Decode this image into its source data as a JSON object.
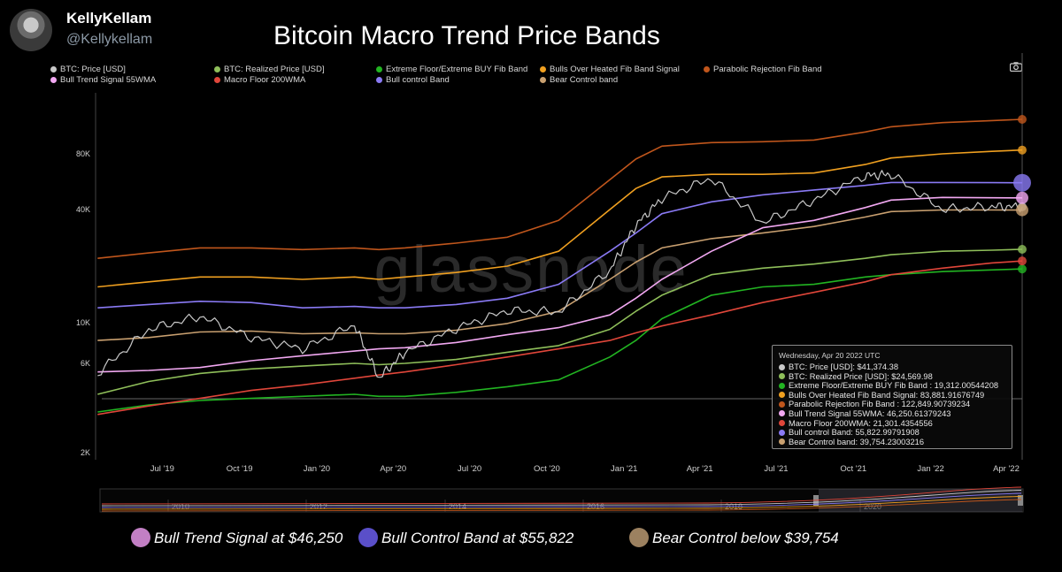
{
  "header": {
    "display_name": "KellyKellam",
    "handle": "@Kellykellam"
  },
  "title": "Bitcoin Macro Trend Price Bands",
  "watermark": "glassnode",
  "legend": [
    {
      "label": "BTC: Price [USD]",
      "color": "#c8c8c8"
    },
    {
      "label": "BTC: Realized Price [USD]",
      "color": "#8fbf5a"
    },
    {
      "label": "Extreme Floor/Extreme BUY Fib Band",
      "color": "#22b422"
    },
    {
      "label": "Bulls Over Heated Fib Band Signal",
      "color": "#f0a020"
    },
    {
      "label": "Parabolic Rejection Fib Band",
      "color": "#c0561c"
    },
    {
      "label": "Bull Trend Signal 55WMA",
      "color": "#f2a8f2"
    },
    {
      "label": "Macro Floor 200WMA",
      "color": "#e0463a"
    },
    {
      "label": "Bull control Band",
      "color": "#8a7af5"
    },
    {
      "label": "Bear Control band",
      "color": "#c9a070"
    }
  ],
  "chart_data": {
    "type": "line",
    "scale": "log",
    "y_ticks": [
      "80K",
      "40K",
      "10K",
      "6K",
      "2K"
    ],
    "x_ticks": [
      "Jul '19",
      "Oct '19",
      "Jan '20",
      "Apr '20",
      "Jul '20",
      "Oct '20",
      "Jan '21",
      "Apr '21",
      "Jul '21",
      "Oct '21",
      "Jan '22",
      "Apr '22"
    ],
    "x_range": [
      "2019-04-20",
      "2022-04-20"
    ],
    "y_range": [
      2000,
      140000
    ],
    "grid": false,
    "legend_position": "top",
    "dates": [
      "2019-04",
      "2019-06",
      "2019-08",
      "2019-10",
      "2019-12",
      "2020-02",
      "2020-03",
      "2020-04",
      "2020-06",
      "2020-08",
      "2020-10",
      "2020-12",
      "2021-01",
      "2021-02",
      "2021-04",
      "2021-06",
      "2021-08",
      "2021-10",
      "2021-11",
      "2022-01",
      "2022-03",
      "2022-04"
    ],
    "series": [
      {
        "name": "BTC: Price [USD]",
        "color": "#c8c8c8",
        "values": [
          5300,
          9200,
          10800,
          8300,
          7200,
          9700,
          5000,
          6900,
          9300,
          11600,
          11400,
          19000,
          33000,
          46000,
          59000,
          34000,
          45000,
          61000,
          62000,
          40000,
          41500,
          41374
        ]
      },
      {
        "name": "BTC: Realized Price [USD]",
        "color": "#8fbf5a",
        "values": [
          4100,
          4800,
          5300,
          5600,
          5800,
          6000,
          5900,
          6000,
          6300,
          6900,
          7500,
          9200,
          11500,
          14000,
          18000,
          19500,
          20500,
          22000,
          23000,
          24000,
          24300,
          24570
        ]
      },
      {
        "name": "Extreme Floor/Extreme BUY Fib Band",
        "color": "#22b422",
        "values": [
          3300,
          3600,
          3800,
          3900,
          4000,
          4100,
          4000,
          4000,
          4200,
          4500,
          4900,
          6500,
          8000,
          10500,
          14000,
          15500,
          16000,
          17500,
          18000,
          18700,
          19100,
          19312
        ]
      },
      {
        "name": "Bulls Over Heated Fib Band Signal",
        "color": "#f0a020",
        "values": [
          15500,
          16500,
          17500,
          17500,
          17000,
          17500,
          17000,
          17500,
          18500,
          20000,
          24000,
          40000,
          52000,
          60000,
          62000,
          62000,
          63000,
          70000,
          76000,
          80000,
          82500,
          83882
        ]
      },
      {
        "name": "Parabolic Rejection Fib Band",
        "color": "#c0561c",
        "values": [
          22000,
          23500,
          25000,
          25000,
          24500,
          25000,
          24500,
          25000,
          26500,
          28500,
          35000,
          58000,
          75000,
          88000,
          92000,
          93000,
          95000,
          105000,
          112000,
          118000,
          121000,
          122850
        ]
      },
      {
        "name": "Bull Trend Signal 55WMA",
        "color": "#f2a8f2",
        "values": [
          5400,
          5500,
          5700,
          6200,
          6600,
          7000,
          7200,
          7300,
          7800,
          8600,
          9400,
          11000,
          13500,
          17000,
          24000,
          32000,
          35000,
          41000,
          45000,
          46500,
          46300,
          46251
        ]
      },
      {
        "name": "Macro Floor 200WMA",
        "color": "#e0463a",
        "values": [
          3200,
          3550,
          3900,
          4300,
          4600,
          5000,
          5200,
          5400,
          5900,
          6500,
          7200,
          8000,
          8800,
          9600,
          11000,
          12800,
          14500,
          16500,
          18000,
          19500,
          20800,
          21301
        ]
      },
      {
        "name": "Bull control Band",
        "color": "#8a7af5",
        "values": [
          12000,
          12500,
          13000,
          12800,
          12000,
          12200,
          12000,
          12000,
          12500,
          13500,
          16000,
          24000,
          30000,
          38000,
          44000,
          48000,
          51000,
          54000,
          56000,
          56000,
          55900,
          55823
        ]
      },
      {
        "name": "Bear Control band",
        "color": "#c9a070",
        "values": [
          8000,
          8300,
          8900,
          9000,
          8700,
          8800,
          8700,
          8700,
          9100,
          9900,
          11500,
          17000,
          21000,
          25000,
          28000,
          30000,
          32500,
          36500,
          39000,
          39800,
          39800,
          39754
        ]
      }
    ]
  },
  "minimap": {
    "years": [
      "2010",
      "2012",
      "2014",
      "2016",
      "2018",
      "2020"
    ]
  },
  "tooltip": {
    "date": "Wednesday, Apr 20 2022 UTC",
    "rows": [
      {
        "text": "BTC: Price [USD]: $41,374.38",
        "color": "#c8c8c8"
      },
      {
        "text": "BTC: Realized Price [USD]: $24,569.98",
        "color": "#8fbf5a"
      },
      {
        "text": "Extreme Floor/Extreme BUY Fib Band : 19,312.00544208",
        "color": "#22b422"
      },
      {
        "text": "Bulls Over Heated Fib Band Signal: 83,881.91676749",
        "color": "#f0a020"
      },
      {
        "text": "Parabolic Rejection Fib Band : 122,849.90739234",
        "color": "#c0561c"
      },
      {
        "text": "Bull Trend Signal 55WMA: 46,250.61379243",
        "color": "#f2a8f2"
      },
      {
        "text": "Macro Floor 200WMA: 21,301.4354556",
        "color": "#e0463a"
      },
      {
        "text": "Bull control Band: 55,822.99791908",
        "color": "#8a7af5"
      },
      {
        "text": "Bear Control band: 39,754.23003216",
        "color": "#c9a070"
      }
    ]
  },
  "annotations": [
    {
      "text": "Bull Trend Signal at $46,250",
      "color": "#c27fc4"
    },
    {
      "text": "Bull Control Band at $55,822",
      "color": "#5a4fc9"
    },
    {
      "text": "Bear Control below $39,754",
      "color": "#9c8160"
    }
  ]
}
